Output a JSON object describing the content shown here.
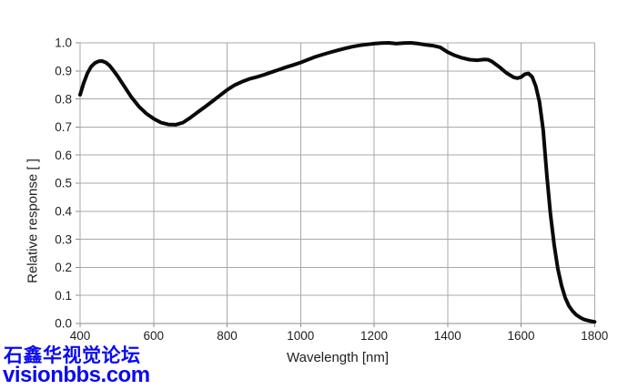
{
  "watermark": {
    "line1": "石鑫华视觉论坛",
    "line2": "visionbbs.com",
    "color": "#0b0bef"
  },
  "chart_data": {
    "type": "line",
    "title": "",
    "xlabel": "Wavelength [nm]",
    "ylabel": "Relative response [ ]",
    "xlim": [
      400,
      1800
    ],
    "ylim": [
      0.0,
      1.0
    ],
    "x_ticks": [
      400,
      600,
      800,
      1000,
      1200,
      1400,
      1600,
      1800
    ],
    "y_ticks": [
      0.0,
      0.1,
      0.2,
      0.3,
      0.4,
      0.5,
      0.6,
      0.7,
      0.8,
      0.9,
      1.0
    ],
    "grid": true,
    "legend": "none",
    "colors": {
      "line": "#0a0a0a",
      "grid": "#a9a9a9",
      "axis": "#8c8c8c",
      "tick_text": "#1f1f1f"
    },
    "series": [
      {
        "name": "relative-response",
        "x": [
          400,
          410,
          420,
          430,
          440,
          450,
          460,
          470,
          480,
          490,
          500,
          520,
          540,
          560,
          580,
          600,
          620,
          640,
          660,
          680,
          700,
          720,
          740,
          760,
          780,
          800,
          820,
          840,
          860,
          880,
          900,
          920,
          940,
          960,
          980,
          1000,
          1020,
          1040,
          1060,
          1080,
          1100,
          1120,
          1140,
          1160,
          1180,
          1200,
          1220,
          1240,
          1260,
          1280,
          1300,
          1320,
          1340,
          1360,
          1380,
          1400,
          1420,
          1440,
          1460,
          1480,
          1500,
          1510,
          1520,
          1540,
          1560,
          1580,
          1590,
          1600,
          1610,
          1620,
          1630,
          1640,
          1650,
          1660,
          1670,
          1680,
          1690,
          1700,
          1710,
          1720,
          1730,
          1740,
          1750,
          1760,
          1770,
          1780,
          1790,
          1800
        ],
        "y": [
          0.815,
          0.857,
          0.892,
          0.915,
          0.928,
          0.934,
          0.935,
          0.93,
          0.919,
          0.903,
          0.885,
          0.845,
          0.806,
          0.773,
          0.748,
          0.73,
          0.716,
          0.709,
          0.708,
          0.716,
          0.733,
          0.753,
          0.772,
          0.792,
          0.812,
          0.832,
          0.849,
          0.861,
          0.871,
          0.878,
          0.886,
          0.895,
          0.904,
          0.913,
          0.921,
          0.93,
          0.94,
          0.95,
          0.958,
          0.966,
          0.973,
          0.98,
          0.986,
          0.991,
          0.994,
          0.997,
          0.999,
          1.0,
          0.997,
          0.999,
          1.0,
          0.997,
          0.993,
          0.99,
          0.984,
          0.967,
          0.955,
          0.946,
          0.94,
          0.938,
          0.941,
          0.94,
          0.934,
          0.915,
          0.893,
          0.877,
          0.874,
          0.878,
          0.888,
          0.891,
          0.879,
          0.845,
          0.79,
          0.69,
          0.53,
          0.39,
          0.28,
          0.195,
          0.135,
          0.092,
          0.063,
          0.044,
          0.031,
          0.022,
          0.015,
          0.011,
          0.008,
          0.006
        ]
      }
    ]
  }
}
